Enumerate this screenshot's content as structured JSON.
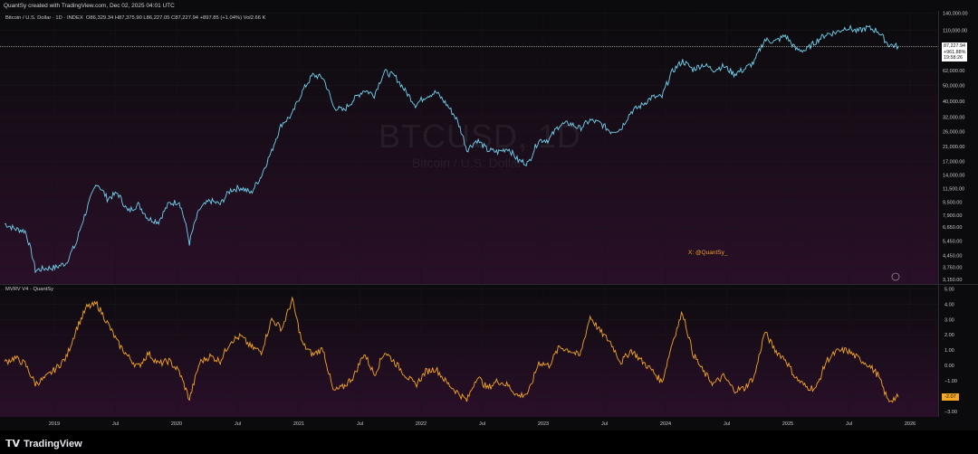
{
  "header": {
    "credit": "QuantSy created with TradingView.com, Dec 02, 2025 04:01 UTC",
    "symbol_line": "Bitcoin / U.S. Dollar · 1D · INDEX",
    "ohlc": "O86,329.34  H87,375.90  L86,227.05  C87,227.94  +897.85 (+1.04%)  Vol2.66 K"
  },
  "watermark": {
    "symbol": "BTCUSD, 1D",
    "name": "Bitcoin / U.S. Dollar"
  },
  "annotation": "X: @QuantSy_",
  "indicator_title": "MVRV V4 · QuantSy",
  "last_price": {
    "price": "87,227.94",
    "change": "+961.88%",
    "countdown": "19:58:26"
  },
  "mvrv_last": "-2.07",
  "footer": {
    "brand": "TradingView"
  },
  "colors": {
    "price_line": "#6fd3ee",
    "mvrv_line": "#f5a623",
    "background_top": "#0b0b0d",
    "background_bottom": "#2a0f28"
  },
  "chart_data": [
    {
      "type": "line",
      "title": "Bitcoin / U.S. Dollar · 1D · INDEX",
      "scale": "log",
      "y_ticks": [
        3150,
        3750,
        4450,
        5450,
        6650,
        7900,
        9500,
        11500,
        14000,
        17000,
        21000,
        26000,
        32000,
        40000,
        50000,
        62000,
        110000,
        140000
      ],
      "y_tick_labels": [
        "3,150.00",
        "3,750.00",
        "4,450.00",
        "5,450.00",
        "6,650.00",
        "7,900.00",
        "9,500.00",
        "11,500.00",
        "14,000.00",
        "17,000.00",
        "21,000.00",
        "26,000.00",
        "32,000.00",
        "40,000.00",
        "50,000.00",
        "62,000.00",
        "110,000.00",
        "140,000.00"
      ],
      "ylim": [
        3000,
        145000
      ],
      "x_ticks": [
        "2019",
        "Jul",
        "2020",
        "Jul",
        "2021",
        "Jul",
        "2022",
        "Jul",
        "2023",
        "Jul",
        "2024",
        "Jul",
        "2025",
        "Jul",
        "2026"
      ],
      "x": [
        "2018-09",
        "2018-10",
        "2018-11",
        "2018-12",
        "2019-01",
        "2019-02",
        "2019-03",
        "2019-04",
        "2019-05",
        "2019-06",
        "2019-07",
        "2019-08",
        "2019-09",
        "2019-10",
        "2019-11",
        "2019-12",
        "2020-01",
        "2020-02",
        "2020-03",
        "2020-04",
        "2020-05",
        "2020-06",
        "2020-07",
        "2020-08",
        "2020-09",
        "2020-10",
        "2020-11",
        "2020-12",
        "2021-01",
        "2021-02",
        "2021-03",
        "2021-04",
        "2021-05",
        "2021-06",
        "2021-07",
        "2021-08",
        "2021-09",
        "2021-10",
        "2021-11",
        "2021-12",
        "2022-01",
        "2022-02",
        "2022-03",
        "2022-04",
        "2022-05",
        "2022-06",
        "2022-07",
        "2022-08",
        "2022-09",
        "2022-10",
        "2022-11",
        "2022-12",
        "2023-01",
        "2023-02",
        "2023-03",
        "2023-04",
        "2023-05",
        "2023-06",
        "2023-07",
        "2023-08",
        "2023-09",
        "2023-10",
        "2023-11",
        "2023-12",
        "2024-01",
        "2024-02",
        "2024-03",
        "2024-04",
        "2024-05",
        "2024-06",
        "2024-07",
        "2024-08",
        "2024-09",
        "2024-10",
        "2024-11",
        "2024-12",
        "2025-01",
        "2025-02",
        "2025-03",
        "2025-04",
        "2025-05",
        "2025-06",
        "2025-07",
        "2025-08",
        "2025-09",
        "2025-10",
        "2025-11",
        "2025-12"
      ],
      "values": [
        7000,
        6500,
        6300,
        3600,
        3700,
        3750,
        4000,
        5300,
        8500,
        12500,
        10000,
        10800,
        8300,
        9200,
        7500,
        7200,
        9300,
        9600,
        5300,
        8600,
        9700,
        9200,
        11300,
        11700,
        10800,
        13800,
        19500,
        29000,
        33000,
        46000,
        58000,
        56000,
        37000,
        35000,
        41000,
        47000,
        43800,
        61000,
        57000,
        46300,
        38000,
        43000,
        45500,
        38500,
        31000,
        20000,
        23000,
        20000,
        19400,
        20500,
        17200,
        16500,
        23000,
        23100,
        28500,
        29200,
        27200,
        30500,
        29200,
        26000,
        27000,
        34500,
        37700,
        42300,
        42500,
        61000,
        71000,
        63000,
        67500,
        62700,
        66000,
        59000,
        63000,
        70000,
        96000,
        93500,
        102000,
        84000,
        82500,
        94000,
        104000,
        107000,
        115000,
        108000,
        114000,
        109000,
        90000,
        87200
      ]
    },
    {
      "type": "line",
      "title": "MVRV V4 · QuantSy",
      "y_ticks": [
        -3,
        -2,
        -1,
        0,
        1,
        2,
        3,
        4,
        5
      ],
      "y_tick_labels": [
        "−3.00",
        "",
        "−1.00",
        "0.00",
        "1.00",
        "2.00",
        "3.00",
        "4.00",
        "5.00"
      ],
      "ylim": [
        -3.3,
        5.2
      ],
      "x": [
        "2018-09",
        "2018-10",
        "2018-11",
        "2018-12",
        "2019-01",
        "2019-02",
        "2019-03",
        "2019-04",
        "2019-05",
        "2019-06",
        "2019-07",
        "2019-08",
        "2019-09",
        "2019-10",
        "2019-11",
        "2019-12",
        "2020-01",
        "2020-02",
        "2020-03",
        "2020-04",
        "2020-05",
        "2020-06",
        "2020-07",
        "2020-08",
        "2020-09",
        "2020-10",
        "2020-11",
        "2020-12",
        "2021-01",
        "2021-02",
        "2021-03",
        "2021-04",
        "2021-05",
        "2021-06",
        "2021-07",
        "2021-08",
        "2021-09",
        "2021-10",
        "2021-11",
        "2021-12",
        "2022-01",
        "2022-02",
        "2022-03",
        "2022-04",
        "2022-05",
        "2022-06",
        "2022-07",
        "2022-08",
        "2022-09",
        "2022-10",
        "2022-11",
        "2022-12",
        "2023-01",
        "2023-02",
        "2023-03",
        "2023-04",
        "2023-05",
        "2023-06",
        "2023-07",
        "2023-08",
        "2023-09",
        "2023-10",
        "2023-11",
        "2023-12",
        "2024-01",
        "2024-02",
        "2024-03",
        "2024-04",
        "2024-05",
        "2024-06",
        "2024-07",
        "2024-08",
        "2024-09",
        "2024-10",
        "2024-11",
        "2024-12",
        "2025-01",
        "2025-02",
        "2025-03",
        "2025-04",
        "2025-05",
        "2025-06",
        "2025-07",
        "2025-08",
        "2025-09",
        "2025-10",
        "2025-11",
        "2025-12"
      ],
      "values": [
        0.2,
        0.5,
        0.1,
        -1.2,
        -0.8,
        -0.2,
        0.5,
        2.4,
        3.8,
        4.0,
        2.8,
        1.5,
        0.6,
        -0.1,
        0.8,
        0.1,
        0.3,
        -0.4,
        -2.2,
        0.2,
        0.6,
        0.3,
        1.6,
        1.9,
        1.2,
        0.9,
        3.0,
        2.4,
        4.3,
        1.4,
        0.7,
        1.1,
        -1.7,
        -1.4,
        -0.7,
        0.8,
        -0.6,
        0.9,
        0.2,
        -0.6,
        -1.3,
        -0.4,
        -0.2,
        -1.1,
        -1.7,
        -2.3,
        -0.7,
        -1.5,
        -1.0,
        -1.3,
        -2.0,
        -1.8,
        0.2,
        0.0,
        1.2,
        1.0,
        0.6,
        3.2,
        2.2,
        1.5,
        0.2,
        1.0,
        0.3,
        -0.3,
        -1.1,
        1.5,
        3.5,
        0.8,
        -0.4,
        -1.2,
        -0.7,
        -1.6,
        -1.5,
        -0.7,
        2.2,
        1.0,
        0.4,
        -0.8,
        -1.4,
        -1.5,
        0.3,
        0.9,
        1.0,
        0.5,
        0.1,
        -0.6,
        -2.3,
        -2.07
      ]
    }
  ]
}
